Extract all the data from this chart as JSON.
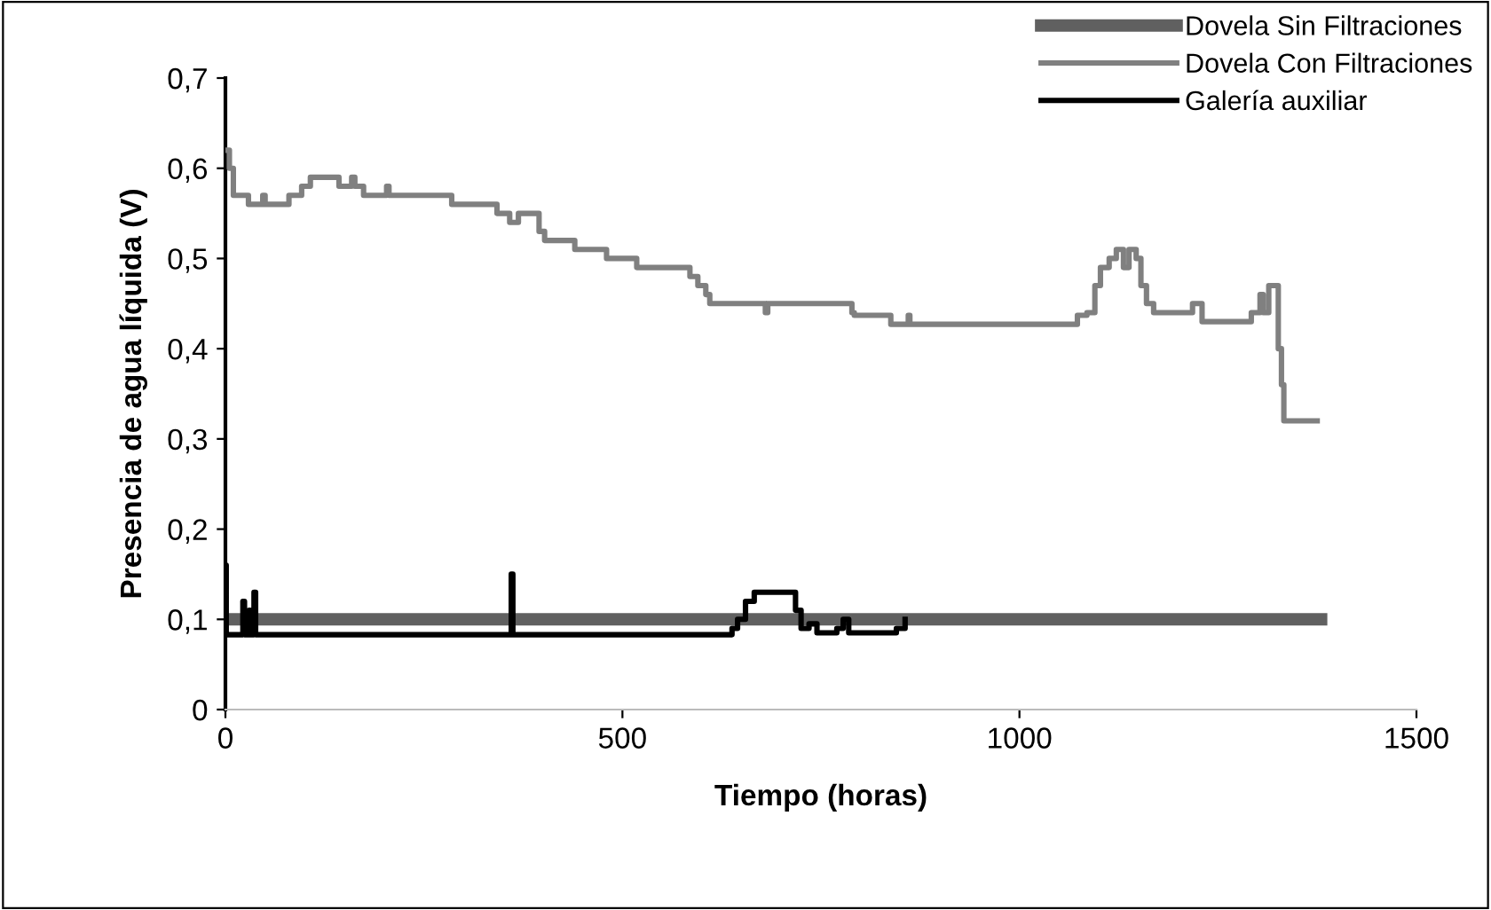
{
  "chart_data": {
    "type": "step",
    "xlabel": "Tiempo (horas)",
    "ylabel": "Presencia de agua líquida (V)",
    "xlim": [
      0,
      1500
    ],
    "xticks": [
      0,
      500,
      1000,
      1500
    ],
    "ylim": [
      0,
      0.7
    ],
    "yticks": [
      {
        "value": 0,
        "label": "0"
      },
      {
        "value": 0.1,
        "label": "0,1"
      },
      {
        "value": 0.2,
        "label": "0,2"
      },
      {
        "value": 0.3,
        "label": "0,3"
      },
      {
        "value": 0.4,
        "label": "0,4"
      },
      {
        "value": 0.5,
        "label": "0,5"
      },
      {
        "value": 0.6,
        "label": "0,6"
      },
      {
        "value": 0.7,
        "label": "0,7"
      }
    ],
    "grid": false,
    "legend": "top right",
    "marker": "none",
    "line_style": "solid",
    "series": [
      {
        "name": "Dovela Sin Filtraciones",
        "color": "#606060",
        "x": [
          0,
          1380
        ],
        "values": [
          0.1,
          0.1
        ]
      },
      {
        "name": "Dovela Con Filtraciones",
        "color": "#808080",
        "x": [
          0,
          5,
          10,
          29,
          45,
          47,
          50,
          80,
          96,
          107,
          141,
          143,
          159,
          163,
          174,
          203,
          206,
          282,
          285,
          331,
          342,
          356,
          358,
          369,
          387,
          395,
          402,
          431,
          440,
          476,
          480,
          514,
          518,
          577,
          585,
          595,
          605,
          610,
          677,
          680,
          683,
          789,
          792,
          838,
          860,
          862,
          890,
          1057,
          1073,
          1085,
          1095,
          1102,
          1113,
          1122,
          1131,
          1138,
          1147,
          1153,
          1160,
          1169,
          1214,
          1218,
          1230,
          1281,
          1292,
          1303,
          1307,
          1314,
          1321,
          1326,
          1330,
          1333,
          1375
        ],
        "values": [
          0.62,
          0.6,
          0.57,
          0.56,
          0.56,
          0.57,
          0.56,
          0.57,
          0.58,
          0.59,
          0.59,
          0.58,
          0.59,
          0.58,
          0.57,
          0.58,
          0.57,
          0.57,
          0.56,
          0.56,
          0.55,
          0.55,
          0.54,
          0.55,
          0.55,
          0.53,
          0.52,
          0.52,
          0.51,
          0.51,
          0.5,
          0.5,
          0.49,
          0.49,
          0.48,
          0.47,
          0.46,
          0.45,
          0.45,
          0.44,
          0.45,
          0.44,
          0.437,
          0.427,
          0.437,
          0.427,
          0.427,
          0.427,
          0.437,
          0.44,
          0.47,
          0.49,
          0.5,
          0.51,
          0.49,
          0.51,
          0.5,
          0.47,
          0.45,
          0.44,
          0.44,
          0.45,
          0.43,
          0.43,
          0.44,
          0.46,
          0.44,
          0.47,
          0.47,
          0.4,
          0.36,
          0.32,
          0.32
        ]
      },
      {
        "name": "Galería auxiliar",
        "color": "#000000",
        "x": [
          0,
          1,
          2,
          20,
          22,
          24,
          30,
          31,
          34,
          36,
          38,
          358,
          360,
          362,
          633,
          638,
          645,
          655,
          666,
          711,
          718,
          725,
          735,
          745,
          760,
          770,
          778,
          785,
          845,
          856
        ],
        "values": [
          0.16,
          0.083,
          0.083,
          0.083,
          0.12,
          0.083,
          0.11,
          0.083,
          0.083,
          0.13,
          0.083,
          0.083,
          0.15,
          0.083,
          0.083,
          0.09,
          0.1,
          0.12,
          0.13,
          0.13,
          0.11,
          0.09,
          0.095,
          0.085,
          0.085,
          0.09,
          0.1,
          0.085,
          0.09,
          0.1
        ]
      }
    ]
  }
}
